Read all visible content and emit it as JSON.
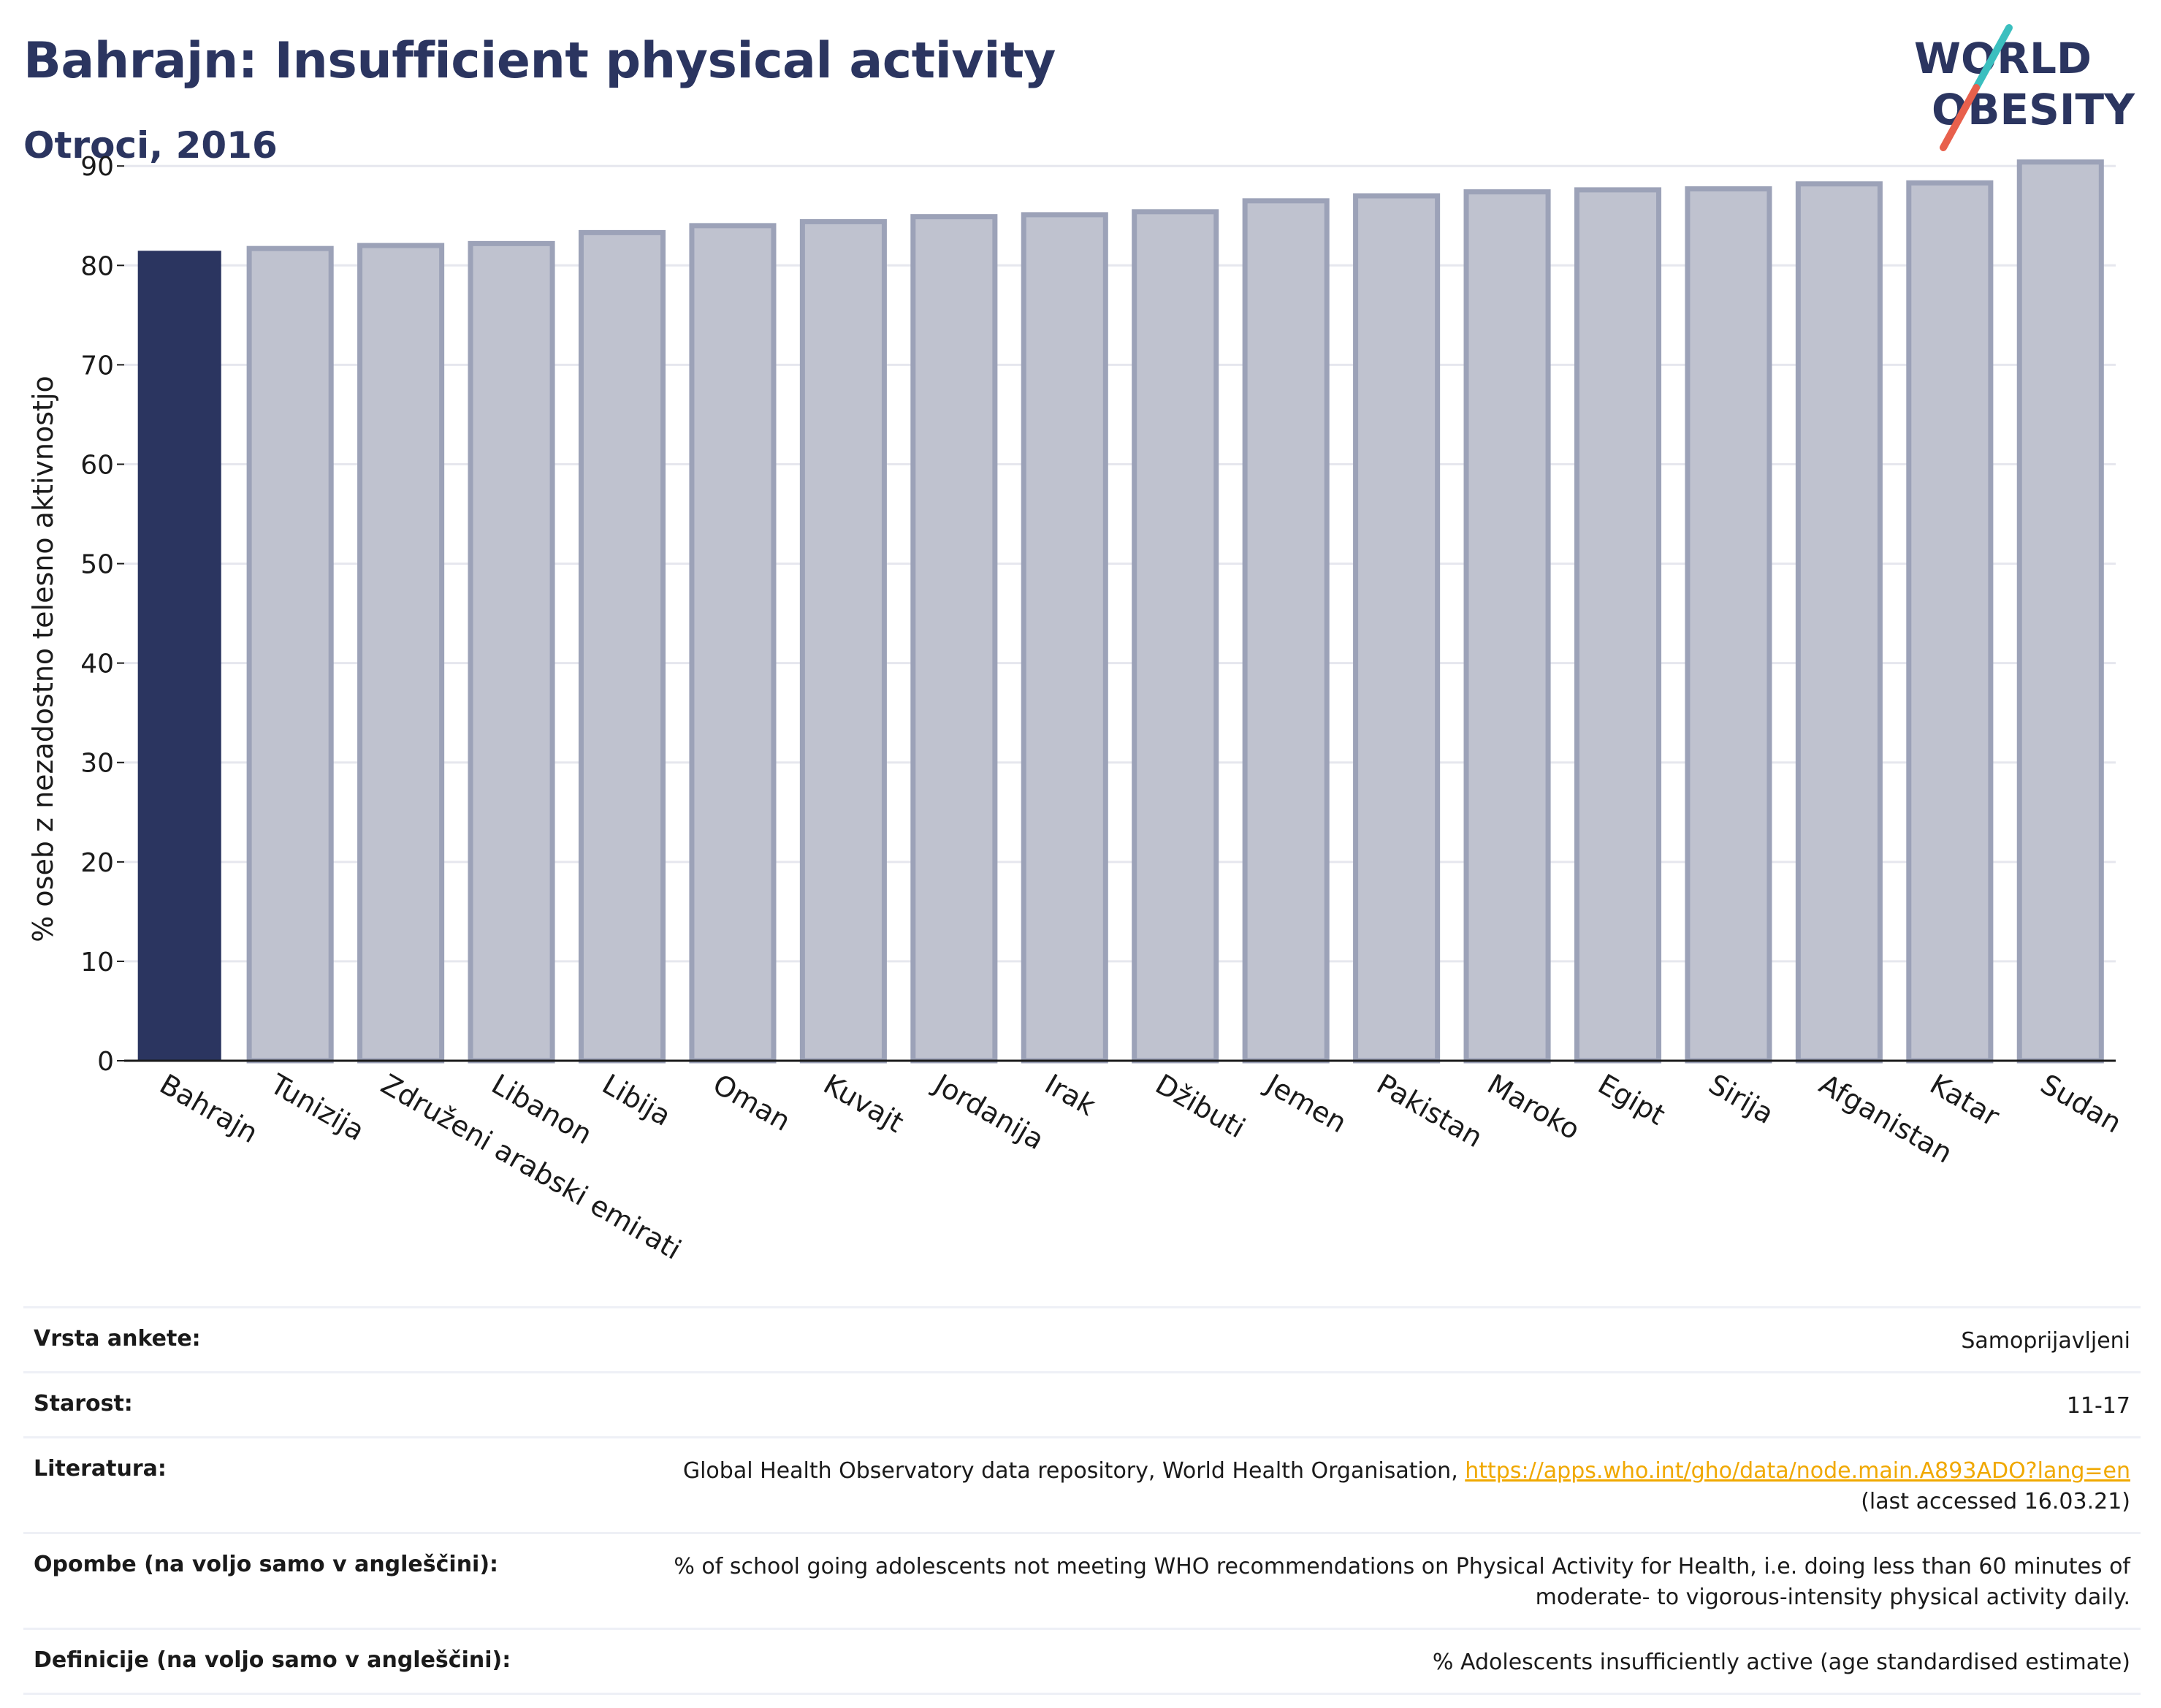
{
  "header": {
    "title": "Bahrajn: Insufficient physical activity",
    "subtitle": "Otroci, 2016"
  },
  "logo": {
    "line1": "WORLD",
    "line2": "OBESITY",
    "text_color": "#2b3560",
    "accent_teal": "#3bbfbf",
    "accent_red": "#e8604c"
  },
  "colors": {
    "highlight": "#2b3560",
    "bar_fill": "#bfc2cf",
    "bar_stroke": "#9ca2b8",
    "grid": "#e6e7ee",
    "axis": "#1a1a1a"
  },
  "chart_data": {
    "type": "bar",
    "title": "Bahrajn: Insufficient physical activity",
    "subtitle": "Otroci, 2016",
    "xlabel": "",
    "ylabel": "% oseb z nezadostno telesno aktivnostjo",
    "ylim": [
      0,
      92
    ],
    "yticks": [
      0,
      10,
      20,
      30,
      40,
      50,
      60,
      70,
      80,
      90
    ],
    "grid": true,
    "highlight_category": "Bahrajn",
    "categories": [
      "Bahrajn",
      "Tunizija",
      "Združeni arabski emirati",
      "Libanon",
      "Libija",
      "Oman",
      "Kuvajt",
      "Jordanija",
      "Irak",
      "Džibuti",
      "Jemen",
      "Pakistan",
      "Maroko",
      "Egipt",
      "Sirija",
      "Afganistan",
      "Katar",
      "Sudan"
    ],
    "values": [
      81.4,
      81.7,
      82.0,
      82.2,
      83.3,
      84.0,
      84.4,
      84.9,
      85.1,
      85.4,
      86.5,
      87.0,
      87.4,
      87.6,
      87.7,
      88.2,
      88.3,
      90.4
    ]
  },
  "meta": [
    {
      "label": "Vrsta ankete:",
      "value": "Samoprijavljeni"
    },
    {
      "label": "Starost:",
      "value": "11-17"
    },
    {
      "label": "Literatura:",
      "value": "Global Health Observatory data repository, World Health Organisation, ",
      "link": "https://apps.who.int/gho/data/node.main.A893ADO?lang=en",
      "value2": "(last accessed 16.03.21)"
    },
    {
      "label": "Opombe (na voljo samo v angleščini):",
      "value": "% of school going adolescents not meeting WHO recommendations on Physical Activity for Health, i.e. doing less than 60 minutes of moderate- to vigorous-intensity physical activity daily."
    },
    {
      "label": "Definicije (na voljo samo v angleščini):",
      "value": "% Adolescents insufficiently active (age standardised estimate)"
    }
  ]
}
